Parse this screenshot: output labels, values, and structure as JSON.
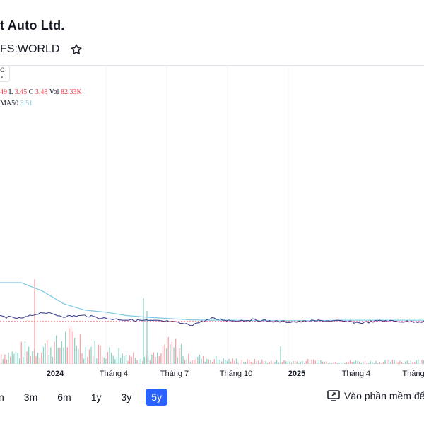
{
  "header": {
    "title": "t Auto Ltd.",
    "symbol": "FS:WORLD"
  },
  "legend": {
    "ohlc_open_prefix": "49",
    "low_label": "L",
    "low_value": "3.45",
    "close_label": "C",
    "close_value": "3.48",
    "vol_label": "Vol",
    "vol_value": "82.33K",
    "ma_label": "MA50",
    "ma_value": "3.51"
  },
  "mini_toggle": {
    "top": "C",
    "bottom": "×"
  },
  "x_axis": [
    "2024",
    "Tháng 4",
    "Tháng 7",
    "Tháng 10",
    "2025",
    "Tháng 4",
    "Tháng"
  ],
  "range_buttons": [
    "n",
    "3m",
    "6m",
    "1y",
    "3y",
    "5y"
  ],
  "active_range": "5y",
  "open_app_label": "Vào phần mềm để",
  "colors": {
    "accent": "#2962ff",
    "up": "#22ab94",
    "down": "#f23645",
    "ma": "#7ec8e3",
    "price_line": "#3b3f8f"
  },
  "chart_data": {
    "type": "line",
    "series": [
      {
        "name": "MA50",
        "values": [
          4.6,
          4.5,
          4.2,
          3.9,
          3.75,
          3.7,
          3.62,
          3.58,
          3.55,
          3.52,
          3.51,
          3.51,
          3.5,
          3.5,
          3.5,
          3.5,
          3.51,
          3.51,
          3.51,
          3.51,
          3.51
        ]
      }
    ],
    "price": [
      3.6,
      3.55,
      3.7,
      3.6,
      3.62,
      3.55,
      3.52,
      3.5,
      3.48,
      3.4,
      3.55,
      3.5,
      3.52,
      3.48,
      3.47,
      3.5,
      3.49,
      3.45,
      3.5,
      3.48,
      3.48
    ],
    "volume": [
      40,
      55,
      70,
      95,
      60,
      45,
      35,
      30,
      65,
      25,
      20,
      15,
      12,
      10,
      10,
      12,
      8,
      10,
      9,
      11,
      12
    ],
    "last_close": 3.48,
    "ylim": [
      3.0,
      5.0
    ]
  }
}
